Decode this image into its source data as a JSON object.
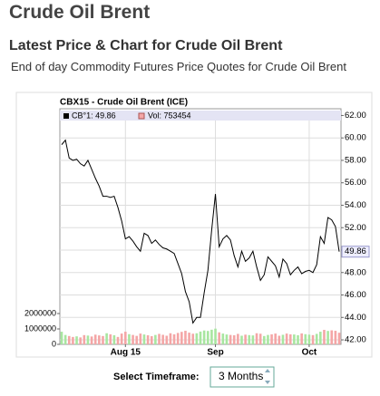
{
  "header": {
    "title": "Crude Oil Brent",
    "subtitle": "Latest Price & Chart for Crude Oil Brent",
    "description": "End of day Commodity Futures Price Quotes for Crude Oil Brent"
  },
  "chart_data": {
    "type": "line",
    "title": "CBX15 - Crude Oil Brent (ICE)",
    "categories": [
      null,
      null,
      null,
      null,
      null,
      null,
      null,
      null,
      null,
      null,
      null,
      null,
      null,
      null,
      null,
      null,
      null,
      "Aug 15",
      null,
      null,
      null,
      null,
      null,
      null,
      null,
      null,
      null,
      null,
      null,
      null,
      null,
      null,
      null,
      null,
      null,
      null,
      null,
      null,
      null,
      null,
      null,
      "Sep",
      null,
      null,
      null,
      null,
      null,
      null,
      null,
      null,
      null,
      null,
      null,
      null,
      null,
      null,
      null,
      null,
      null,
      null,
      null,
      null,
      null,
      null,
      null,
      null,
      "Oct",
      null,
      null,
      null,
      null,
      null,
      null,
      null,
      null
    ],
    "series": [
      {
        "name": "CB°1: 49.86",
        "color": "#000000",
        "values": [
          59.4,
          59.8,
          58.2,
          58.0,
          58.1,
          57.7,
          57.5,
          58.0,
          57.2,
          56.4,
          55.7,
          54.8,
          54.8,
          54.7,
          54.8,
          53.8,
          52.6,
          51.0,
          51.2,
          50.8,
          50.3,
          49.9,
          51.5,
          51.3,
          50.6,
          50.9,
          50.5,
          50.2,
          50.1,
          49.9,
          49.7,
          48.8,
          47.9,
          46.3,
          45.4,
          43.5,
          44.0,
          44.0,
          46.2,
          48.2,
          51.8,
          55.0,
          50.3,
          51.0,
          51.3,
          50.9,
          49.5,
          48.5,
          49.9,
          49.0,
          49.3,
          49.9,
          48.5,
          47.3,
          47.8,
          49.4,
          49.0,
          48.6,
          47.6,
          49.2,
          48.8,
          47.8,
          48.2,
          48.5,
          47.9,
          48.1,
          48.2,
          48.0,
          48.7,
          51.2,
          50.6,
          52.9,
          52.7,
          52.1,
          49.86
        ]
      },
      {
        "name": "Vol: 753454",
        "color": "#f4a6a6",
        "up_color": "#a8e6a0",
        "axis": "y2",
        "values": [
          820000,
          610000,
          540000,
          480000,
          520000,
          450000,
          600000,
          570000,
          510000,
          630000,
          580000,
          540000,
          720000,
          650000,
          590000,
          480000,
          700000,
          820000,
          660000,
          610000,
          550000,
          700000,
          640000,
          590000,
          530000,
          610000,
          680000,
          620000,
          560000,
          720000,
          650000,
          740000,
          810000,
          880000,
          760000,
          690000,
          720000,
          830000,
          900000,
          870000,
          950000,
          1020000,
          780000,
          700000,
          640000,
          610000,
          590000,
          680000,
          560000,
          630000,
          600000,
          580000,
          720000,
          690000,
          540000,
          610000,
          650000,
          700000,
          560000,
          620000,
          700000,
          650000,
          640000,
          590000,
          710000,
          660000,
          630000,
          600000,
          680000,
          820000,
          940000,
          870000,
          910000,
          880000,
          753454
        ]
      }
    ],
    "ylim": [
      41.6,
      62.6
    ],
    "yticks": [
      {
        "value": 42,
        "label": "42.00"
      },
      {
        "value": 44,
        "label": "44.00"
      },
      {
        "value": 46,
        "label": "46.00"
      },
      {
        "value": 48,
        "label": "48.00"
      },
      {
        "value": 50,
        "label": "50.00"
      },
      {
        "value": 52,
        "label": "52.00"
      },
      {
        "value": 54,
        "label": "54.00"
      },
      {
        "value": 56,
        "label": "56.00"
      },
      {
        "value": 58,
        "label": "58.00"
      },
      {
        "value": 60,
        "label": "60.00"
      },
      {
        "value": 62,
        "label": "62.00"
      }
    ],
    "y2lim": [
      0,
      15300000
    ],
    "y2ticks": [
      0,
      1000000,
      2000000
    ],
    "grid": true
  },
  "controls": {
    "label": "Select Timeframe:",
    "selected": "3 Months"
  }
}
